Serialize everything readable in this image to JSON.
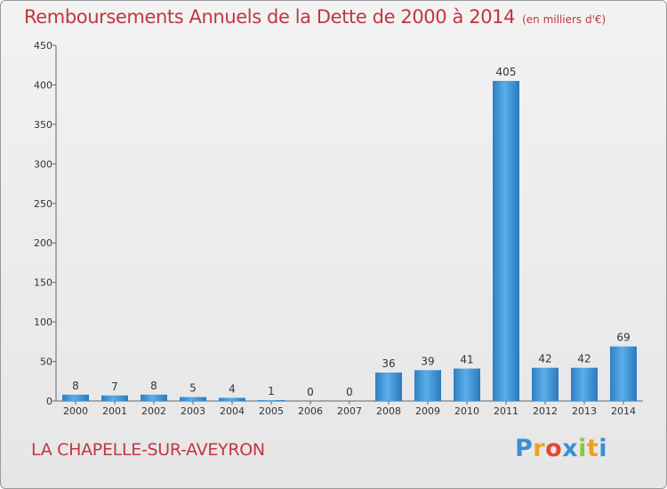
{
  "title": "Remboursements Annuels de la Dette de 2000 à 2014",
  "unit_note": "(en milliers d'€)",
  "commune": "LA CHAPELLE-SUR-AVEYRON",
  "brand": {
    "letters": [
      "P",
      "r",
      "o",
      "x",
      "i",
      "t",
      "i"
    ],
    "colors": [
      "#3a8fd6",
      "#f0a020",
      "#e8462e",
      "#3a8fd6",
      "#8cc63e",
      "#f0a020",
      "#3a8fd6"
    ]
  },
  "chart_data": {
    "type": "bar",
    "title": "Remboursements Annuels de la Dette de 2000 à 2014",
    "categories": [
      "2000",
      "2001",
      "2002",
      "2003",
      "2004",
      "2005",
      "2006",
      "2007",
      "2008",
      "2009",
      "2010",
      "2011",
      "2012",
      "2013",
      "2014"
    ],
    "values": [
      8,
      7,
      8,
      5,
      4,
      1,
      0,
      0,
      36,
      39,
      41,
      405,
      42,
      42,
      69
    ],
    "value_labels": [
      "8",
      "7",
      "8",
      "5",
      "4",
      "1",
      "0",
      "0",
      "36",
      "39",
      "41",
      "405",
      "42",
      "42",
      "69"
    ],
    "ylim": [
      0,
      450
    ],
    "yticks": [
      0,
      50,
      100,
      150,
      200,
      250,
      300,
      350,
      400,
      450
    ],
    "xlabel": "",
    "ylabel": "",
    "grid": false,
    "bar_color": "#3f97da"
  }
}
